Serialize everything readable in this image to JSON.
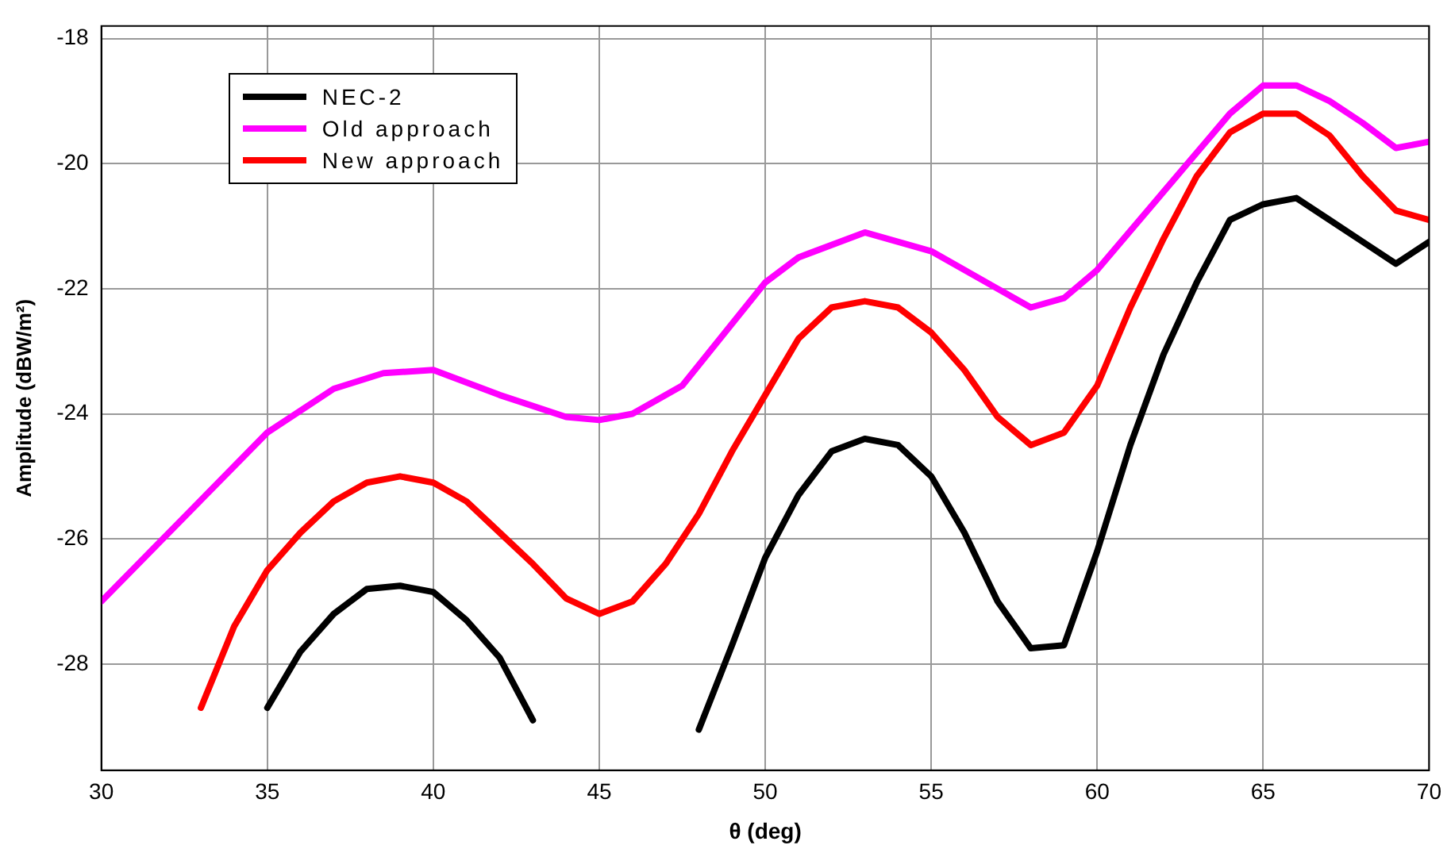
{
  "chart_data": {
    "type": "line",
    "xlabel": "θ (deg)",
    "ylabel": "Amplitude (dBW/m²)",
    "xlim": [
      30,
      70
    ],
    "xticks": [
      30,
      35,
      40,
      45,
      50,
      55,
      60,
      65,
      70
    ],
    "ylim": [
      -29.7,
      -17.8
    ],
    "yticks": [
      -18,
      -20,
      -22,
      -24,
      -26,
      -28
    ],
    "grid": true,
    "legend": "top left",
    "line_style": "solid",
    "marker": "none",
    "series": [
      {
        "name": "NEC-2",
        "color": "#000000",
        "x": [
          35,
          36,
          37,
          38,
          39,
          40,
          41,
          42,
          43,
          45,
          48,
          49,
          50,
          51,
          52,
          53,
          54,
          55,
          56,
          57,
          58,
          59,
          60,
          61,
          62,
          63,
          64,
          65,
          66,
          67,
          68,
          69,
          70
        ],
        "values": [
          -28.7,
          -27.8,
          -27.2,
          -26.8,
          -26.75,
          -26.85,
          -27.3,
          -27.9,
          -28.9,
          null,
          -29.05,
          -27.7,
          -26.3,
          -25.3,
          -24.6,
          -24.4,
          -24.5,
          -25.0,
          -25.9,
          -27.0,
          -27.75,
          -27.7,
          -26.2,
          -24.5,
          -23.05,
          -21.9,
          -20.9,
          -20.65,
          -20.55,
          -20.9,
          -21.25,
          -21.6,
          -21.25
        ]
      },
      {
        "name": "Old approach",
        "color": "#ff00ff",
        "x": [
          30,
          35,
          37,
          38.5,
          40,
          42,
          44,
          45,
          46,
          47.5,
          50,
          51,
          53,
          55,
          57,
          58,
          59,
          60,
          62,
          64,
          65,
          66,
          67,
          68,
          69,
          70
        ],
        "values": [
          -27.0,
          -24.3,
          -23.6,
          -23.35,
          -23.3,
          -23.7,
          -24.05,
          -24.1,
          -24.0,
          -23.55,
          -21.9,
          -21.5,
          -21.1,
          -21.4,
          -22.0,
          -22.3,
          -22.15,
          -21.7,
          -20.45,
          -19.2,
          -18.75,
          -18.75,
          -19.0,
          -19.35,
          -19.75,
          -19.65
        ]
      },
      {
        "name": "New approach",
        "color": "#ff0000",
        "x": [
          33,
          34,
          35,
          36,
          37,
          38,
          39,
          40,
          41,
          42,
          43,
          44,
          45,
          46,
          47,
          48,
          49,
          50,
          51,
          52,
          53,
          54,
          55,
          56,
          57,
          58,
          59,
          60,
          61,
          62,
          63,
          64,
          65,
          66,
          67,
          68,
          69,
          70
        ],
        "values": [
          -28.7,
          -27.4,
          -26.5,
          -25.9,
          -25.4,
          -25.1,
          -25.0,
          -25.1,
          -25.4,
          -25.9,
          -26.4,
          -26.95,
          -27.2,
          -27.0,
          -26.4,
          -25.6,
          -24.6,
          -23.7,
          -22.8,
          -22.3,
          -22.2,
          -22.3,
          -22.7,
          -23.3,
          -24.05,
          -24.5,
          -24.3,
          -23.55,
          -22.3,
          -21.2,
          -20.2,
          -19.5,
          -19.2,
          -19.2,
          -19.55,
          -20.2,
          -20.75,
          -20.9
        ]
      }
    ]
  }
}
